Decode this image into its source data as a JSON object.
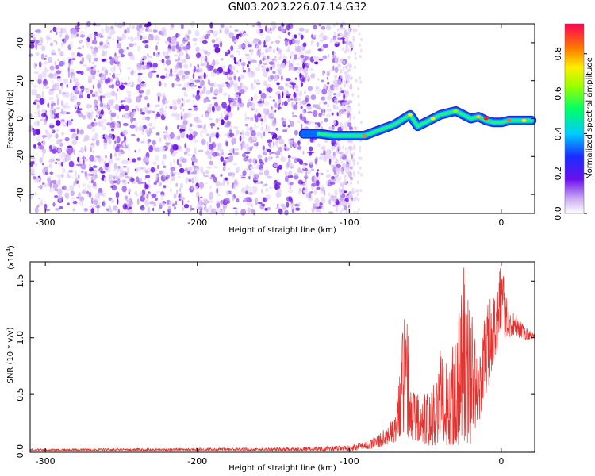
{
  "title": "GN03.2023.226.07.14.G32",
  "chart_data": [
    {
      "type": "heatmap",
      "xlabel": "Height of straight line (km)",
      "ylabel": "Frequency (Hz)",
      "xlim": [
        -310,
        22
      ],
      "ylim": [
        -50,
        50
      ],
      "xticks": [
        -300,
        -200,
        -100,
        0
      ],
      "yticks": [
        -40,
        -20,
        0,
        20,
        40
      ],
      "ridge": {
        "x": [
          -130,
          -120,
          -110,
          -100,
          -90,
          -80,
          -70,
          -60,
          -55,
          -50,
          -45,
          -40,
          -35,
          -30,
          -25,
          -20,
          -15,
          -10,
          -5,
          0,
          5,
          10,
          15,
          20
        ],
        "y": [
          -8,
          -8,
          -9,
          -9,
          -9,
          -6,
          -3,
          2,
          -4,
          -2,
          0,
          2,
          3,
          4,
          2,
          0,
          1,
          -1,
          -2,
          -2,
          -1,
          -1,
          -1,
          -1
        ]
      },
      "colorbar": {
        "label": "Normalized spectral amplitude",
        "range": [
          0,
          0.95
        ],
        "ticks": [
          0.0,
          0.2,
          0.4,
          0.6,
          0.8
        ],
        "tick_labels": [
          "0.0",
          "0.2",
          "0.4",
          "0.6",
          "0.8"
        ]
      }
    },
    {
      "type": "line",
      "xlabel": "Height of straight line (km)",
      "ylabel": "SNR (10 * v/v)",
      "scale_label": "(x10",
      "scale_exp": "4",
      "scale_close": ")",
      "xlim": [
        -310,
        22
      ],
      "ylim": [
        -0.01,
        1.67
      ],
      "xticks": [
        -300,
        -200,
        -100,
        0
      ],
      "yticks": [
        0.0,
        0.5,
        1.0,
        1.5
      ],
      "ytick_labels": [
        "0.0",
        "0.5",
        "1.0",
        "1.5"
      ],
      "series": [
        {
          "color": "#e8302c",
          "envelope_x": [
            -310,
            -150,
            -120,
            -100,
            -90,
            -80,
            -70,
            -62,
            -60,
            -55,
            -50,
            -45,
            -40,
            -35,
            -30,
            -25,
            -20,
            -15,
            -10,
            -5,
            0,
            5,
            10,
            15,
            22
          ],
          "envelope_y": [
            0.02,
            0.03,
            0.04,
            0.05,
            0.08,
            0.15,
            0.3,
            1.5,
            0.55,
            0.5,
            0.5,
            0.6,
            0.9,
            0.75,
            1.05,
            1.65,
            1.3,
            0.75,
            1.3,
            1.4,
            1.65,
            1.25,
            1.2,
            1.1,
            1.05
          ],
          "floor_x": [
            -310,
            -100,
            -80,
            -70,
            -60,
            -50,
            -40,
            -30,
            -20,
            -10,
            -5,
            0,
            10,
            22
          ],
          "floor_y": [
            0.0,
            0.0,
            0.03,
            0.08,
            0.1,
            0.05,
            0.05,
            0.05,
            0.05,
            0.45,
            0.8,
            1.0,
            1.0,
            0.97
          ]
        }
      ]
    }
  ]
}
